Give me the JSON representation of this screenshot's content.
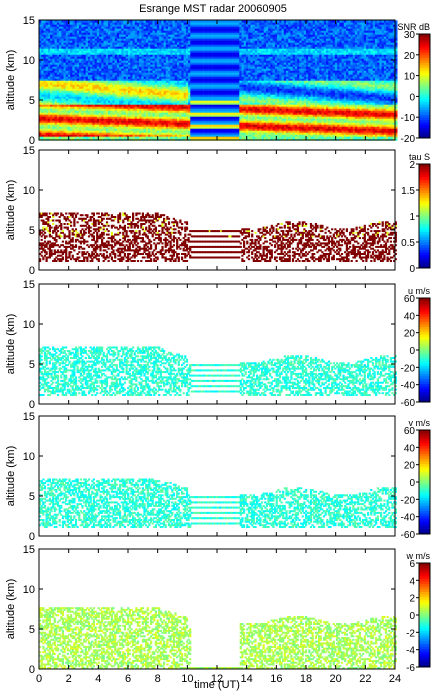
{
  "figure": {
    "title": "Esrange MST radar 20060905",
    "xlabel": "time (UT)"
  },
  "chart_data": [
    {
      "type": "heatmap",
      "panel": "snr",
      "xlabel": "time (UT)",
      "ylabel": "altitude (km)",
      "xlim": [
        0,
        24
      ],
      "ylim": [
        0,
        15
      ],
      "xticks": [
        0,
        2,
        4,
        6,
        8,
        10,
        12,
        14,
        16,
        18,
        20,
        22,
        24
      ],
      "yticks": [
        0,
        5,
        10,
        15
      ],
      "colorbar": {
        "label": "SNR dB",
        "range": [
          -20,
          30
        ],
        "ticks": [
          -20,
          -10,
          0,
          10,
          20,
          30
        ]
      },
      "gap_interval_ut": [
        10.2,
        13.5
      ],
      "features": [
        {
          "altitude_km": [
            0.5,
            4.5
          ],
          "time_ut": [
            0,
            24
          ],
          "approx_value": 20
        },
        {
          "altitude_km": [
            4.5,
            7.5
          ],
          "time_ut": [
            0,
            10.2
          ],
          "approx_value": 5
        },
        {
          "altitude_km": [
            10.5,
            11.5
          ],
          "time_ut": [
            0,
            24
          ],
          "approx_value": -10
        }
      ]
    },
    {
      "type": "heatmap",
      "panel": "tau",
      "ylabel": "altitude (km)",
      "xlim": [
        0,
        24
      ],
      "ylim": [
        0,
        15
      ],
      "xticks": [
        0,
        2,
        4,
        6,
        8,
        10,
        12,
        14,
        16,
        18,
        20,
        22,
        24
      ],
      "yticks": [
        0,
        5,
        10,
        15
      ],
      "colorbar": {
        "label": "tau S",
        "range": [
          0,
          2
        ],
        "ticks": [
          0,
          0.5,
          1,
          1.5,
          2
        ]
      },
      "features": [
        {
          "altitude_km": [
            1,
            7
          ],
          "time_ut": [
            0,
            24
          ],
          "approx_value": 2
        }
      ]
    },
    {
      "type": "heatmap",
      "panel": "u",
      "ylabel": "altitude (km)",
      "xlim": [
        0,
        24
      ],
      "ylim": [
        0,
        15
      ],
      "xticks": [
        0,
        2,
        4,
        6,
        8,
        10,
        12,
        14,
        16,
        18,
        20,
        22,
        24
      ],
      "yticks": [
        0,
        5,
        10,
        15
      ],
      "colorbar": {
        "label": "u m/s",
        "range": [
          -60,
          60
        ],
        "ticks": [
          -60,
          -40,
          -20,
          0,
          20,
          40,
          60
        ]
      },
      "features": [
        {
          "altitude_km": [
            1,
            7
          ],
          "time_ut": [
            0,
            24
          ],
          "approx_value": -10
        }
      ]
    },
    {
      "type": "heatmap",
      "panel": "v",
      "ylabel": "altitude (km)",
      "xlim": [
        0,
        24
      ],
      "ylim": [
        0,
        15
      ],
      "xticks": [
        0,
        2,
        4,
        6,
        8,
        10,
        12,
        14,
        16,
        18,
        20,
        22,
        24
      ],
      "yticks": [
        0,
        5,
        10,
        15
      ],
      "colorbar": {
        "label": "v m/s",
        "range": [
          -60,
          60
        ],
        "ticks": [
          -60,
          -40,
          -20,
          0,
          20,
          40,
          60
        ]
      },
      "features": [
        {
          "altitude_km": [
            1,
            7
          ],
          "time_ut": [
            0,
            24
          ],
          "approx_value": -10
        }
      ]
    },
    {
      "type": "heatmap",
      "panel": "w",
      "ylabel": "altitude (km)",
      "xlim": [
        0,
        24
      ],
      "ylim": [
        0,
        15
      ],
      "xticks": [
        0,
        2,
        4,
        6,
        8,
        10,
        12,
        14,
        16,
        18,
        20,
        22,
        24
      ],
      "yticks": [
        0,
        5,
        10,
        15
      ],
      "colorbar": {
        "label": "w m/s",
        "range": [
          -6,
          6
        ],
        "ticks": [
          -6,
          -4,
          -2,
          0,
          2,
          4,
          6
        ]
      },
      "features": [
        {
          "altitude_km": [
            0,
            7.5
          ],
          "time_ut": [
            0,
            24
          ],
          "approx_value": 0.5
        }
      ]
    }
  ]
}
